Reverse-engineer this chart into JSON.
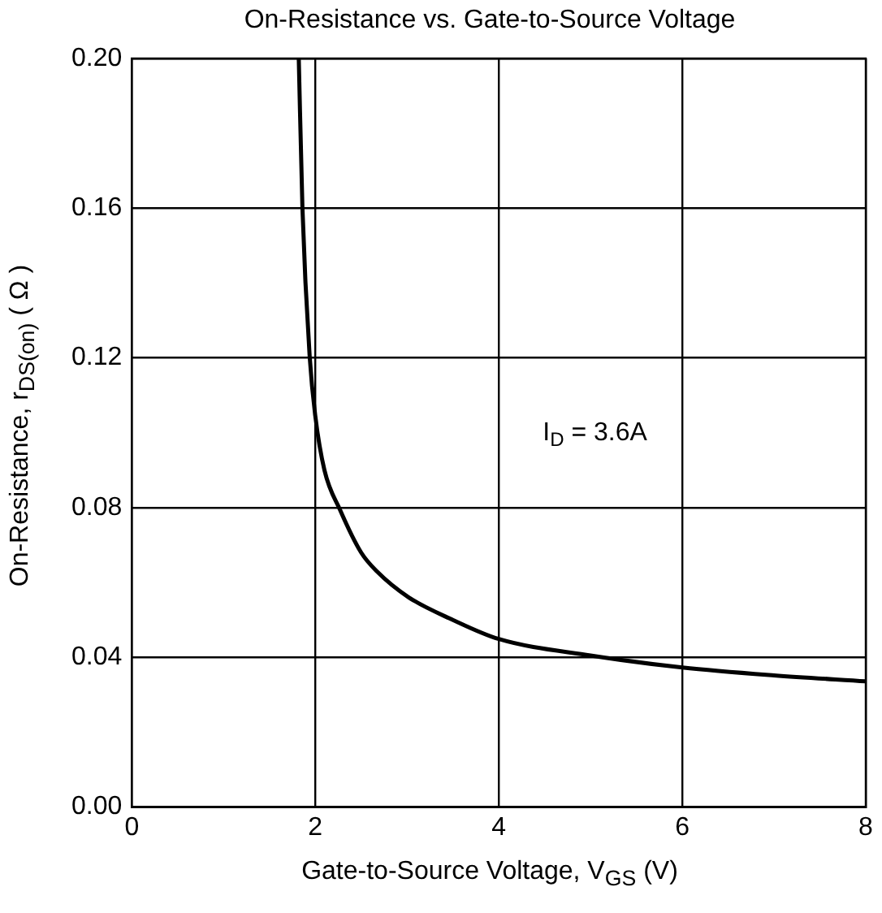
{
  "chart_data": {
    "type": "line",
    "title": "On-Resistance vs. Gate-to-Source Voltage",
    "xlabel": "Gate-to-Source Voltage, V$_{GS}$ (V)",
    "ylabel": "On-Resistance, r$_{DS(on)}$ ( Ω )",
    "x": [
      1.82,
      1.86,
      1.94,
      2.0,
      2.1,
      2.27,
      2.5,
      2.67,
      3.02,
      3.5,
      4.0,
      5.0,
      6.0,
      7.0,
      8.0
    ],
    "series": [
      {
        "color": "#000000",
        "values": [
          0.2,
          0.16,
          0.12,
          0.1045,
          0.09,
          0.0794,
          0.068,
          0.063,
          0.056,
          0.05,
          0.0449,
          0.0405,
          0.0373,
          0.0352,
          0.0336
        ]
      }
    ],
    "xlim": [
      0,
      8
    ],
    "xticks": [
      0,
      2,
      4,
      6,
      8
    ],
    "ylim": [
      0,
      0.2
    ],
    "yticks": [
      {
        "value": 0,
        "label": "0.00"
      },
      {
        "value": 0.04,
        "label": "0.04"
      },
      {
        "value": 0.08,
        "label": "0.08"
      },
      {
        "value": 0.12,
        "label": "0.12"
      },
      {
        "value": 0.16,
        "label": "0.16"
      },
      {
        "value": 0.2,
        "label": "0.20"
      }
    ],
    "grid": true,
    "legend": false,
    "marker": "none",
    "line_style": "solid",
    "annotations": [
      "I$_{D}$ = 3.6A"
    ]
  }
}
